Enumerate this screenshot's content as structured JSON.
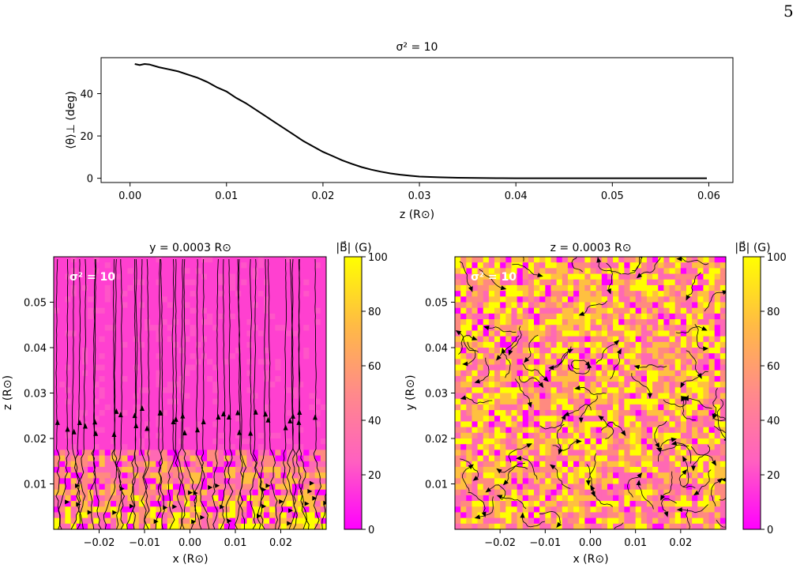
{
  "page": {
    "number": "5"
  },
  "chart_data": [
    {
      "type": "line",
      "title": "σ² = 10",
      "xlabel": "z (R⊙)",
      "ylabel": "⟨θ⟩⊥ (deg)",
      "xlim": [
        -0.003,
        0.0625
      ],
      "ylim": [
        -2,
        57
      ],
      "xticks": [
        "0.00",
        "0.01",
        "0.02",
        "0.03",
        "0.04",
        "0.05",
        "0.06"
      ],
      "yticks": [
        "0",
        "20",
        "40"
      ],
      "color": "#000000",
      "series": [
        {
          "x": [
            0.0005,
            0.001,
            0.0015,
            0.002,
            0.003,
            0.004,
            0.005,
            0.006,
            0.007,
            0.008,
            0.009,
            0.01,
            0.011,
            0.012,
            0.013,
            0.014,
            0.015,
            0.016,
            0.017,
            0.018,
            0.019,
            0.02,
            0.021,
            0.022,
            0.023,
            0.024,
            0.025,
            0.026,
            0.027,
            0.028,
            0.029,
            0.03,
            0.032,
            0.034,
            0.036,
            0.038,
            0.04,
            0.045,
            0.05,
            0.055,
            0.0598
          ],
          "y": [
            54,
            53.5,
            54,
            53.8,
            52.5,
            51.5,
            50.5,
            49,
            47.5,
            45.5,
            43,
            41,
            38,
            35.5,
            32.5,
            29.5,
            26.5,
            23.5,
            20.5,
            17.5,
            15,
            12.5,
            10.5,
            8.5,
            6.8,
            5.3,
            4.1,
            3.1,
            2.3,
            1.7,
            1.2,
            0.8,
            0.45,
            0.25,
            0.12,
            0.06,
            0.03,
            0.01,
            0,
            0,
            0
          ]
        }
      ]
    },
    {
      "type": "heatmap",
      "title": "y = 0.0003 R⊙",
      "xlabel": "x (R⊙)",
      "ylabel": "z (R⊙)",
      "annotation": "σ² = 10",
      "xlim": [
        -0.03,
        0.03
      ],
      "ylim": [
        0.0,
        0.06
      ],
      "xticks": [
        "−0.02",
        "−0.01",
        "0.00",
        "0.01",
        "0.02"
      ],
      "yticks": [
        "0.01",
        "0.02",
        "0.03",
        "0.04",
        "0.05"
      ],
      "colorbar": {
        "label": "|B⃗| (G)",
        "range": [
          0,
          100
        ],
        "ticks": [
          "0",
          "20",
          "40",
          "60",
          "80",
          "100"
        ],
        "colors": [
          "#ff00ff",
          "#ff69b4",
          "#ff8a80",
          "#ffc040",
          "#ffff00"
        ]
      },
      "note": "vertical field lines (streamlines) over a magenta |B| map; turbulent mixed colours near z < 0.02"
    },
    {
      "type": "heatmap",
      "title": "z = 0.0003 R⊙",
      "xlabel": "x (R⊙)",
      "ylabel": "y (R⊙)",
      "annotation": "σ² = 10",
      "xlim": [
        -0.03,
        0.03
      ],
      "ylim": [
        0.0,
        0.06
      ],
      "xticks": [
        "−0.02",
        "−0.01",
        "0.00",
        "0.01",
        "0.02"
      ],
      "yticks": [
        "0.01",
        "0.02",
        "0.03",
        "0.04",
        "0.05"
      ],
      "colorbar": {
        "label": "|B⃗| (G)",
        "range": [
          0,
          100
        ],
        "ticks": [
          "0",
          "20",
          "40",
          "60",
          "80",
          "100"
        ],
        "colors": [
          "#ff00ff",
          "#ff69b4",
          "#ff8a80",
          "#ffc040",
          "#ffff00"
        ]
      },
      "note": "noisy |B| map with short random curly field lines and arrowheads"
    }
  ]
}
